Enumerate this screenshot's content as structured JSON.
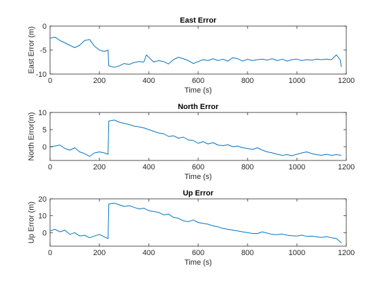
{
  "chart_data": [
    {
      "type": "line",
      "title": "East Error",
      "xlabel": "Time (s)",
      "ylabel": "East Error (m)",
      "xlim": [
        0,
        1200
      ],
      "ylim": [
        -10,
        0
      ],
      "xticks": [
        0,
        200,
        400,
        600,
        800,
        1000,
        1200
      ],
      "yticks": [
        -10,
        -5,
        0
      ],
      "grid": false,
      "series": [
        {
          "color": "#0072BD",
          "x": [
            0,
            20,
            40,
            60,
            80,
            100,
            120,
            140,
            160,
            180,
            200,
            220,
            235,
            238,
            260,
            280,
            300,
            320,
            340,
            360,
            380,
            390,
            400,
            420,
            440,
            460,
            480,
            500,
            520,
            540,
            560,
            580,
            600,
            620,
            640,
            660,
            680,
            700,
            720,
            740,
            760,
            780,
            800,
            820,
            840,
            860,
            880,
            900,
            920,
            940,
            960,
            980,
            1000,
            1020,
            1040,
            1060,
            1080,
            1100,
            1120,
            1140,
            1160,
            1175,
            1180
          ],
          "y": [
            -2.5,
            -2.3,
            -3.0,
            -3.5,
            -4.0,
            -4.5,
            -4.0,
            -3.0,
            -2.8,
            -4.2,
            -5.0,
            -5.3,
            -5.0,
            -8.3,
            -8.6,
            -8.3,
            -7.8,
            -8.0,
            -7.6,
            -7.4,
            -7.5,
            -6.0,
            -6.5,
            -7.5,
            -7.2,
            -7.4,
            -7.9,
            -7.0,
            -6.5,
            -6.8,
            -7.2,
            -7.8,
            -7.4,
            -7.0,
            -7.2,
            -6.8,
            -7.2,
            -6.9,
            -7.3,
            -6.6,
            -6.8,
            -7.3,
            -6.9,
            -7.2,
            -7.0,
            -6.9,
            -7.1,
            -6.8,
            -7.2,
            -6.9,
            -7.3,
            -7.0,
            -6.9,
            -7.2,
            -7.0,
            -7.1,
            -6.9,
            -7.0,
            -6.9,
            -7.0,
            -6.0,
            -7.0,
            -8.5
          ]
        }
      ]
    },
    {
      "type": "line",
      "title": "North Error",
      "xlabel": "Time (s)",
      "ylabel": "North Error(m)",
      "xlim": [
        0,
        1200
      ],
      "ylim": [
        -4,
        10
      ],
      "xticks": [
        0,
        200,
        400,
        600,
        800,
        1000,
        1200
      ],
      "yticks": [
        0,
        5,
        10
      ],
      "grid": false,
      "series": [
        {
          "color": "#0072BD",
          "x": [
            0,
            20,
            40,
            60,
            80,
            100,
            120,
            140,
            160,
            180,
            200,
            220,
            235,
            238,
            260,
            280,
            300,
            320,
            340,
            360,
            380,
            400,
            420,
            440,
            460,
            480,
            500,
            520,
            540,
            560,
            580,
            600,
            620,
            640,
            660,
            680,
            700,
            720,
            740,
            760,
            780,
            800,
            820,
            840,
            860,
            880,
            900,
            920,
            940,
            960,
            980,
            1000,
            1020,
            1040,
            1060,
            1080,
            1100,
            1120,
            1140,
            1160,
            1180
          ],
          "y": [
            0.0,
            0.2,
            0.5,
            -0.5,
            -1.0,
            -0.3,
            -1.5,
            -2.0,
            -2.8,
            -1.8,
            -1.5,
            -1.8,
            -2.2,
            7.5,
            7.8,
            7.2,
            6.8,
            6.5,
            6.0,
            5.8,
            5.5,
            5.0,
            4.5,
            4.0,
            3.8,
            3.0,
            3.2,
            2.5,
            2.8,
            2.0,
            1.8,
            1.0,
            1.5,
            0.8,
            1.2,
            0.5,
            0.3,
            0.6,
            0.0,
            0.2,
            -0.3,
            -0.5,
            -0.8,
            -0.3,
            -1.0,
            -1.5,
            -1.8,
            -2.2,
            -2.5,
            -2.3,
            -2.6,
            -2.2,
            -1.8,
            -1.5,
            -2.0,
            -2.3,
            -2.5,
            -2.2,
            -2.5,
            -2.3,
            -2.5
          ]
        }
      ]
    },
    {
      "type": "line",
      "title": "Up  Error",
      "xlabel": "Time (s)",
      "ylabel": "Up Error (m)",
      "xlim": [
        0,
        1200
      ],
      "ylim": [
        -8,
        20
      ],
      "xticks": [
        0,
        200,
        400,
        600,
        800,
        1000,
        1200
      ],
      "yticks": [
        0,
        10,
        20
      ],
      "grid": false,
      "series": [
        {
          "color": "#0072BD",
          "x": [
            0,
            20,
            40,
            60,
            80,
            100,
            120,
            140,
            160,
            180,
            200,
            220,
            235,
            238,
            260,
            280,
            300,
            320,
            340,
            360,
            380,
            400,
            420,
            440,
            460,
            480,
            500,
            520,
            540,
            560,
            580,
            600,
            620,
            640,
            660,
            680,
            700,
            720,
            740,
            760,
            780,
            800,
            820,
            840,
            860,
            880,
            900,
            920,
            940,
            960,
            980,
            1000,
            1020,
            1040,
            1060,
            1080,
            1100,
            1120,
            1140,
            1160,
            1180
          ],
          "y": [
            1.0,
            2.0,
            0.5,
            1.5,
            -1.0,
            0.0,
            -2.0,
            -1.5,
            -3.0,
            -2.0,
            -1.0,
            -2.5,
            -3.5,
            17.0,
            17.5,
            16.5,
            15.5,
            16.0,
            15.0,
            14.0,
            14.5,
            13.0,
            12.5,
            12.0,
            10.5,
            11.0,
            9.0,
            8.5,
            7.0,
            6.5,
            7.5,
            6.0,
            5.5,
            5.0,
            4.0,
            3.5,
            2.5,
            2.0,
            1.5,
            1.0,
            0.5,
            0.0,
            -0.5,
            -0.5,
            0.5,
            -0.3,
            -1.0,
            -1.2,
            -0.8,
            -1.5,
            -1.8,
            -2.0,
            -1.5,
            -2.2,
            -2.0,
            -2.5,
            -2.8,
            -2.3,
            -3.0,
            -3.5,
            -6.0
          ]
        }
      ]
    }
  ]
}
